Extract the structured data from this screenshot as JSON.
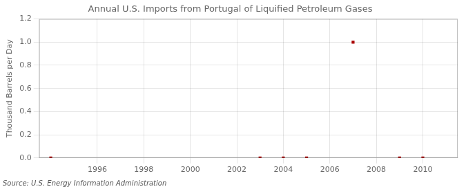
{
  "chart_data": {
    "type": "scatter",
    "title": "Annual U.S. Imports from Portugal of Liquified Petroleum Gases",
    "ylabel": "Thousand Barrels per Day",
    "source": "Source: U.S. Energy Information Administration",
    "x": [
      1994,
      2003,
      2004,
      2005,
      2007,
      2009,
      2010
    ],
    "values": [
      0.0,
      0.0,
      0.0,
      0.0,
      1.0,
      0.0,
      0.0
    ],
    "color": "#aa0000",
    "marker": "square",
    "xlim": [
      1993.5,
      2011.5
    ],
    "ylim": [
      0.0,
      1.2
    ],
    "xticks": [
      1996,
      1998,
      2000,
      2002,
      2004,
      2006,
      2008,
      2010
    ],
    "yticks": [
      {
        "value": 0.0,
        "label": "0.0"
      },
      {
        "value": 0.2,
        "label": "0.2"
      },
      {
        "value": 0.4,
        "label": "0.4"
      },
      {
        "value": 0.6,
        "label": "0.6"
      },
      {
        "value": 0.8,
        "label": "0.8"
      },
      {
        "value": 1.0,
        "label": "1.0"
      },
      {
        "value": 1.2,
        "label": "1.2"
      }
    ],
    "grid": true
  }
}
